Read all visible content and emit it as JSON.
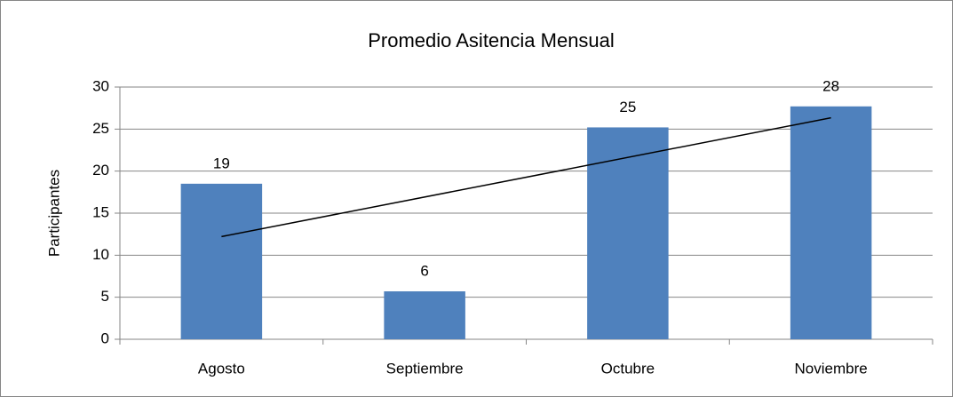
{
  "chart_data": {
    "type": "bar",
    "title": "Promedio Asitencia Mensual",
    "y_label": "Participantes",
    "categories": [
      "Agosto",
      "Septiembre",
      "Octubre",
      "Noviembre"
    ],
    "values": [
      18.5,
      5.7,
      25.2,
      27.7
    ],
    "value_labels": [
      "19",
      "6",
      "25",
      "28"
    ],
    "color": "#4f81bd",
    "ylim": [
      0,
      30
    ],
    "yticks": [
      0,
      5,
      10,
      15,
      20,
      25,
      30
    ],
    "grid": true,
    "trendline": "linear"
  }
}
